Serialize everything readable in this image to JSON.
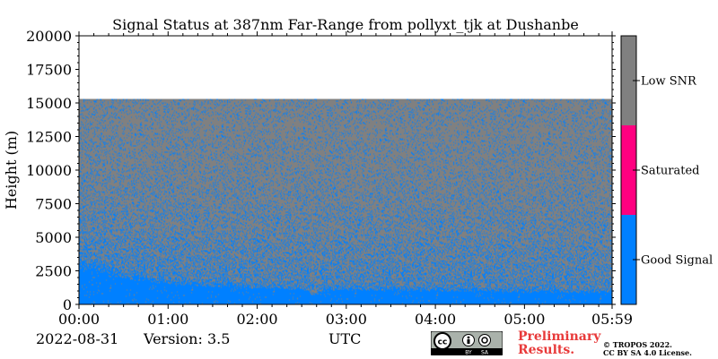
{
  "chart_data": {
    "type": "heatmap",
    "title": "Signal Status at 387nm Far-Range from pollyxt_tjk at Dushanbe",
    "xlabel": "UTC",
    "ylabel": "Height (m)",
    "xlim": [
      "00:00",
      "05:59"
    ],
    "ylim": [
      0,
      20000
    ],
    "x_ticks": [
      "00:00",
      "01:00",
      "02:00",
      "03:00",
      "04:00",
      "05:00",
      "05:59"
    ],
    "y_ticks": [
      0,
      2500,
      5000,
      7500,
      10000,
      12500,
      15000,
      17500,
      20000
    ],
    "data_top_height_m": 15300,
    "good_signal_top_profile": {
      "time_hours": [
        0,
        0.25,
        0.5,
        1.0,
        1.5,
        2.0,
        2.5,
        2.6,
        2.8,
        3.0,
        3.5,
        4.0,
        4.5,
        5.0,
        5.5,
        5.98
      ],
      "height_m": [
        3600,
        3300,
        2600,
        2100,
        1800,
        1600,
        1500,
        900,
        1500,
        1500,
        1400,
        1400,
        1300,
        1300,
        1200,
        1200
      ]
    },
    "colorbar": {
      "categories": [
        {
          "label": "Good Signal",
          "color": "#0080ff"
        },
        {
          "label": "Saturated",
          "color": "#ff0080"
        },
        {
          "label": "Low SNR",
          "color": "#808080"
        }
      ]
    }
  },
  "footer": {
    "date": "2022-08-31",
    "version": "Version: 3.5",
    "preliminary_line1": "Preliminary",
    "preliminary_line2": "Results.",
    "copyright_line1": "© TROPOS 2022.",
    "copyright_line2": "CC BY SA 4.0 License.",
    "license_badge": {
      "main": "cc",
      "by": "BY",
      "sa": "SA"
    }
  }
}
